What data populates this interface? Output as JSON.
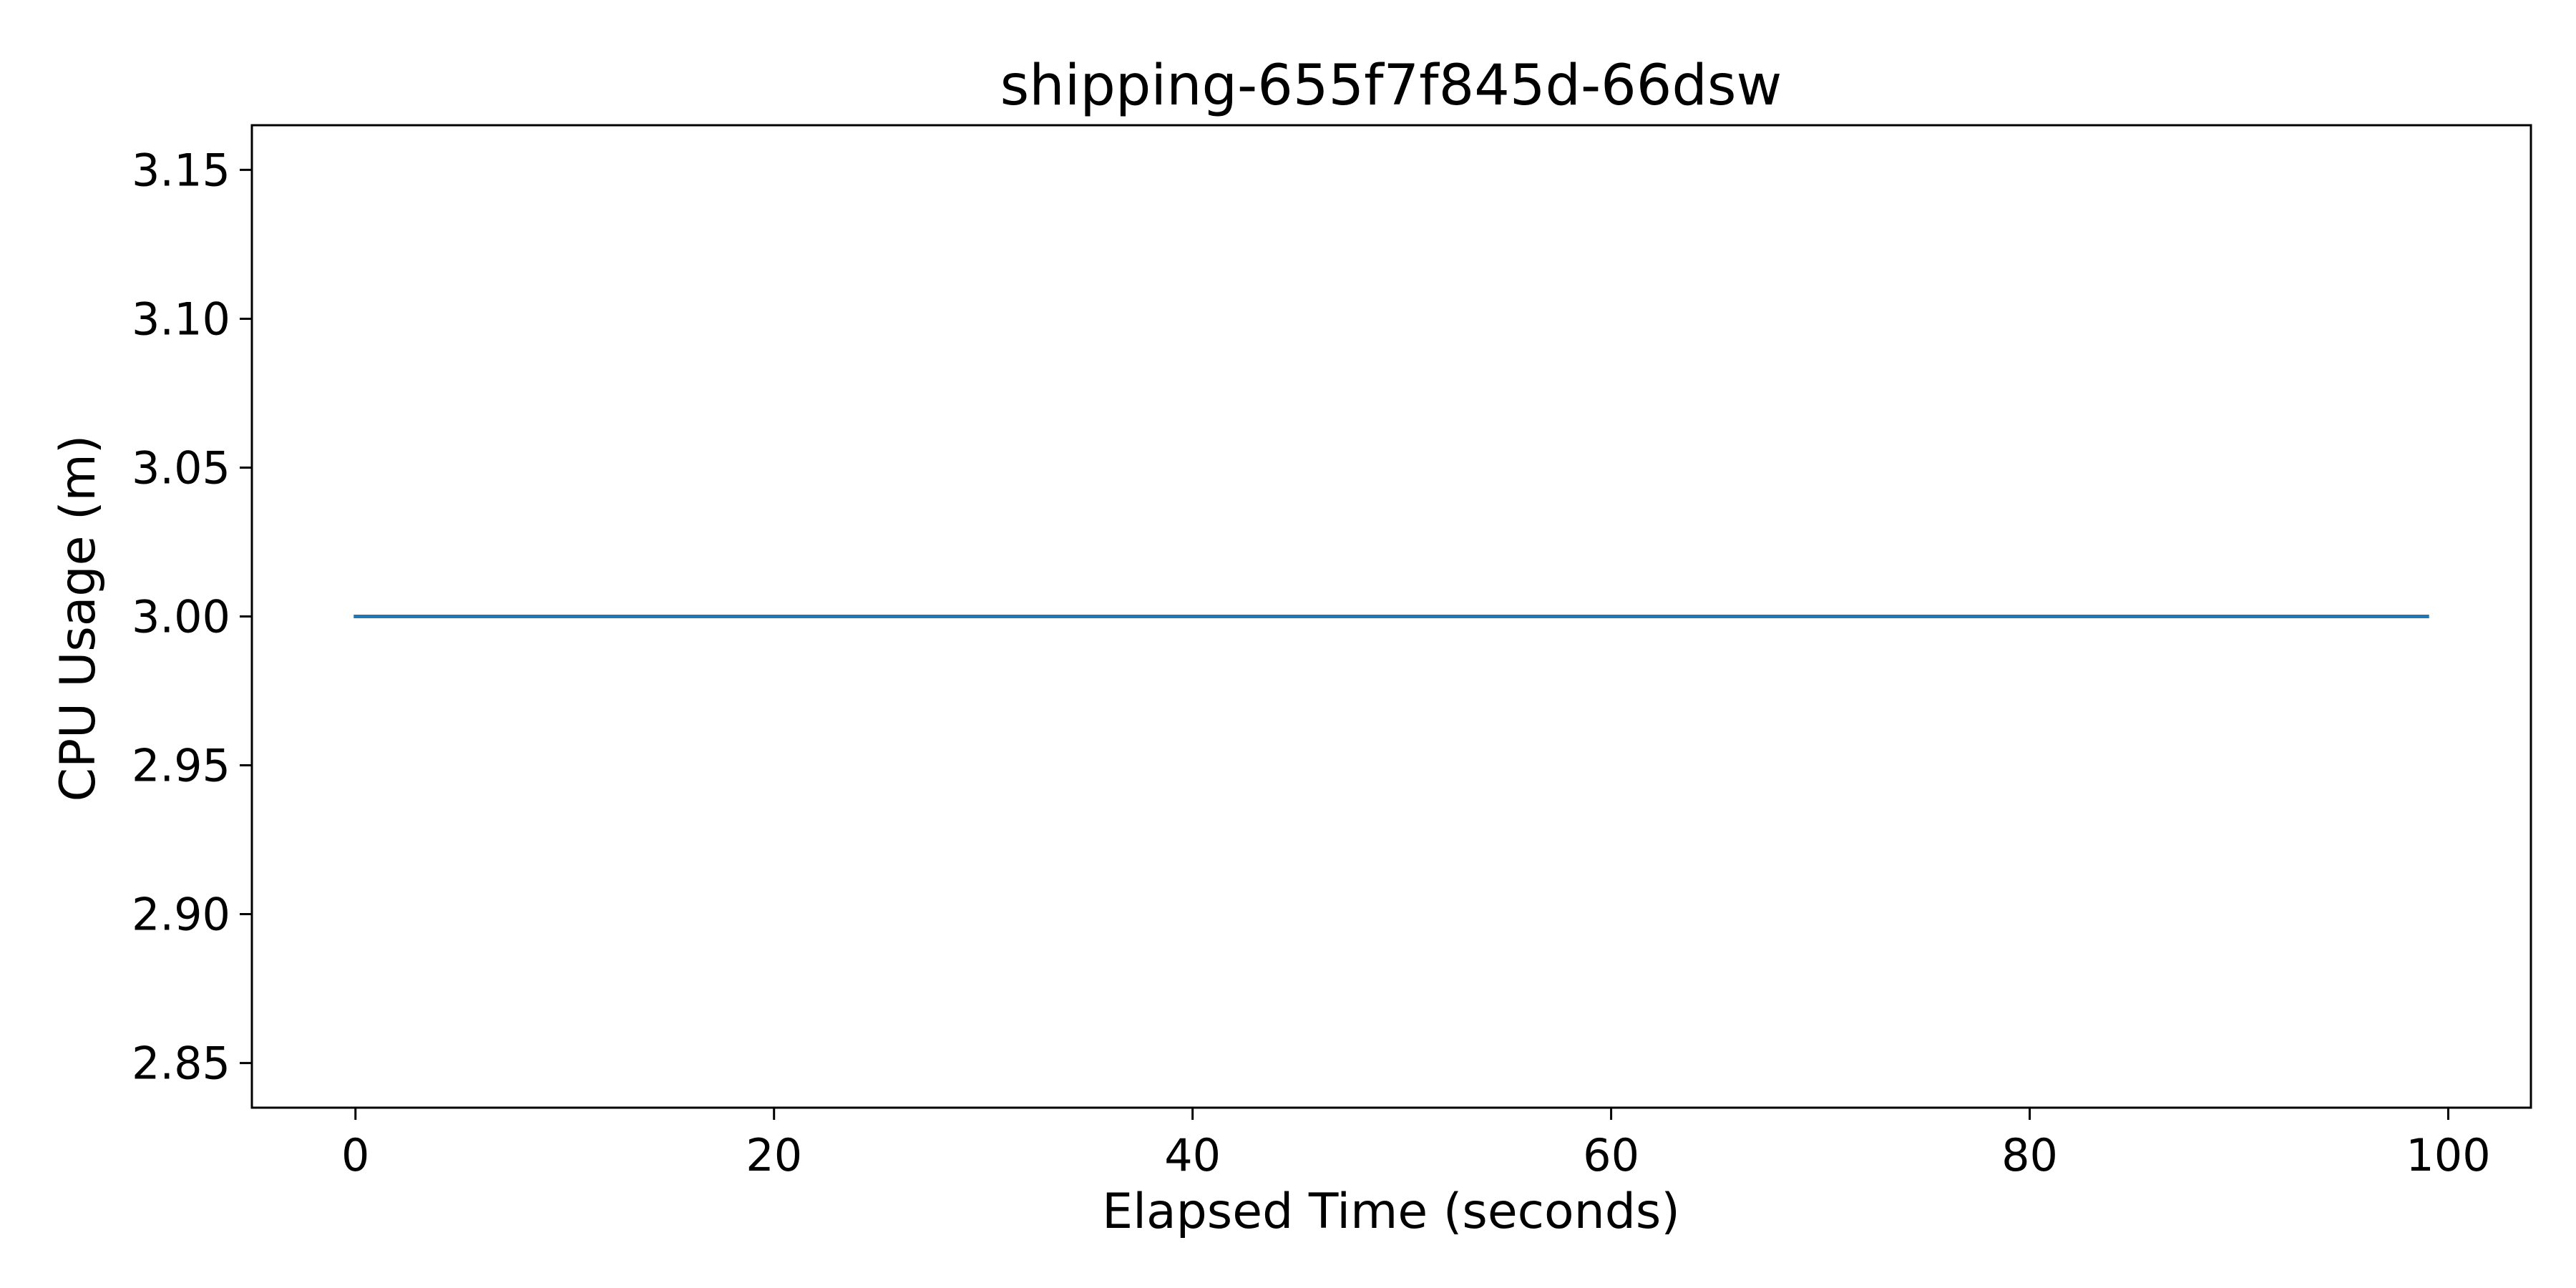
{
  "chart_data": {
    "type": "line",
    "title": "shipping-655f7f845d-66dsw",
    "xlabel": "Elapsed Time (seconds)",
    "ylabel": "CPU Usage (m)",
    "xlim": [
      -4.95,
      103.95
    ],
    "ylim": [
      2.835,
      3.165
    ],
    "x_ticks": [
      0,
      20,
      40,
      60,
      80,
      100
    ],
    "x_tick_labels": [
      "0",
      "20",
      "40",
      "60",
      "80",
      "100"
    ],
    "y_ticks": [
      2.85,
      2.9,
      2.95,
      3.0,
      3.05,
      3.1,
      3.15
    ],
    "y_tick_labels": [
      "2.85",
      "2.90",
      "2.95",
      "3.00",
      "3.05",
      "3.10",
      "3.15"
    ],
    "grid": false,
    "legend": "none",
    "series": [
      {
        "color": "#1f77b4",
        "x": [
          0,
          99
        ],
        "y": [
          3.0,
          3.0
        ]
      }
    ]
  }
}
